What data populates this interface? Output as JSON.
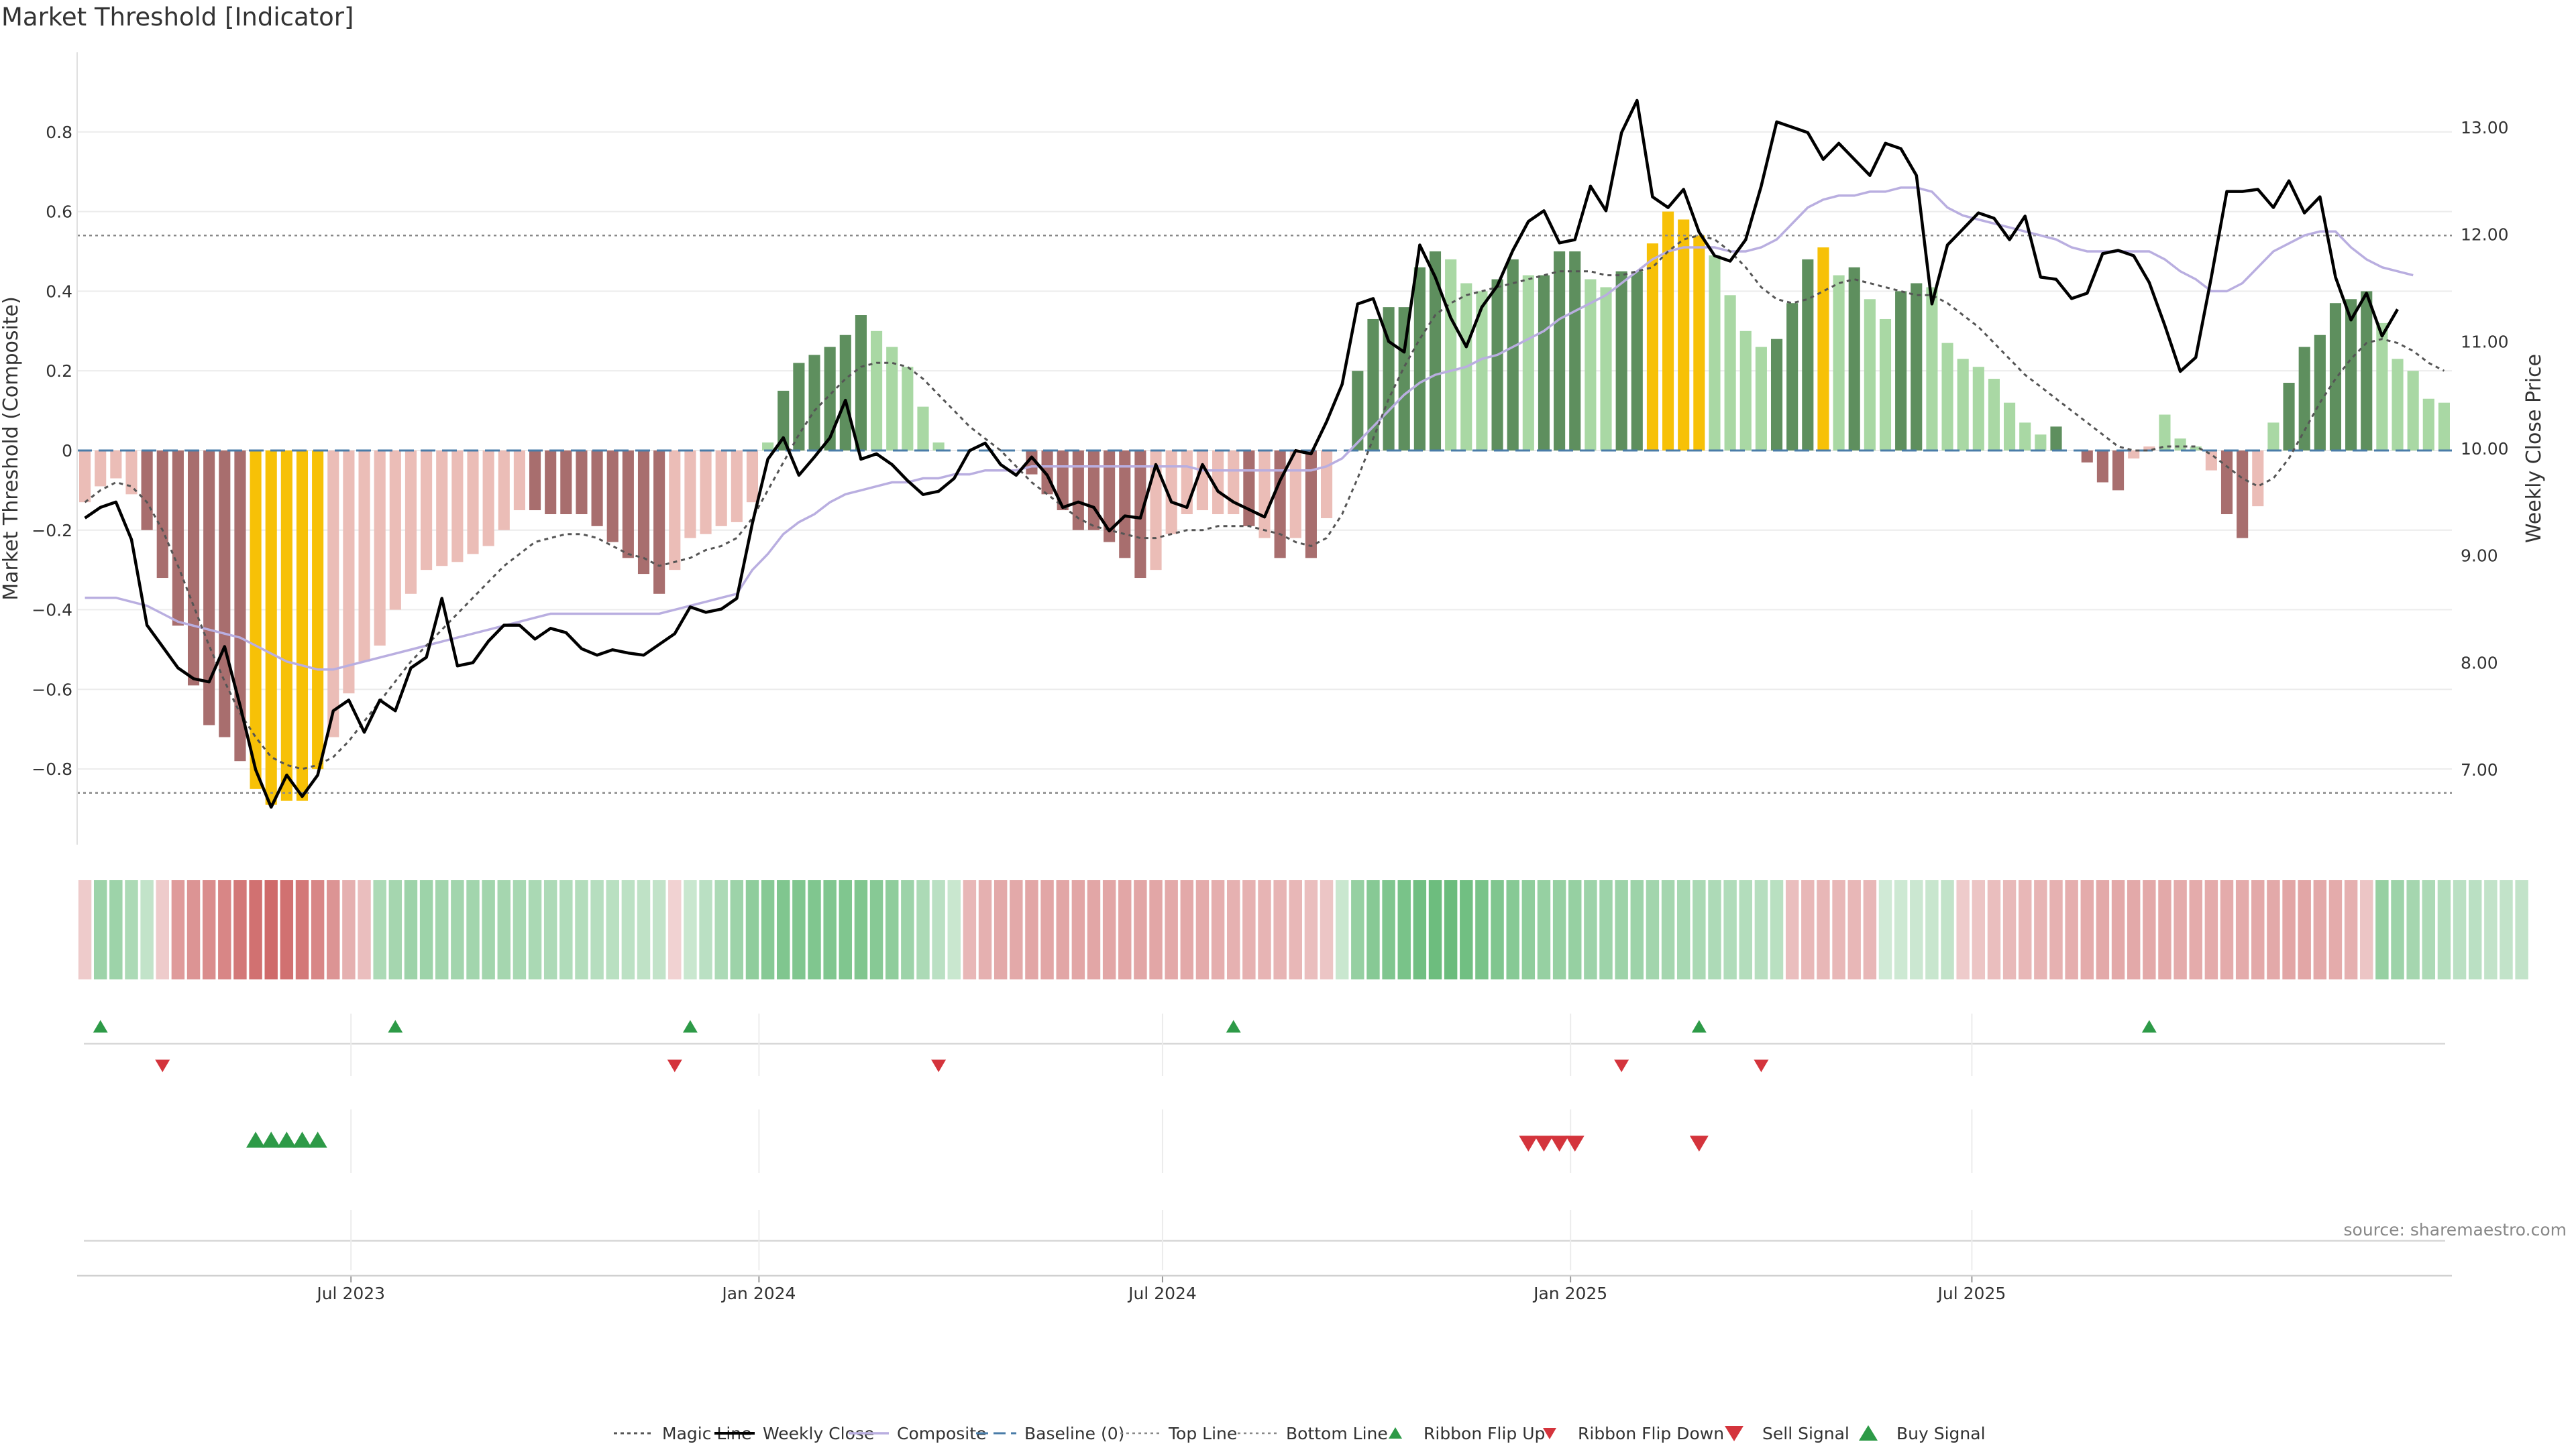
{
  "title": "Market Threshold [Indicator]",
  "source": "source: sharemaestro.com",
  "colors": {
    "magic": "#555555",
    "weekly_close": "#000000",
    "composite": "#b9aee0",
    "baseline": "#4a7ca8",
    "threshold_line": "#888888",
    "bar_strong_green": "#5e8f5e",
    "bar_light_green": "#a9d8a4",
    "bar_strong_red": "#a86e6e",
    "bar_light_red": "#ebbdb7",
    "bar_yellow": "#f7c107",
    "ribbon_green": "#4daf62",
    "ribbon_red": "#c85555",
    "signal_green": "#2d9a47",
    "signal_red": "#d4343c"
  },
  "chart_data": {
    "type": "bar",
    "x_start": "2023-03-03",
    "x_interval_days": 7,
    "x_ticks": [
      "Jul 2023",
      "Jan 2024",
      "Jul 2024",
      "Jan 2025",
      "Jul 2025"
    ],
    "x_tick_dates": [
      "2023-07-01",
      "2024-01-01",
      "2024-07-01",
      "2025-01-01",
      "2025-07-01"
    ],
    "ylabel": "Market Threshold (Composite)",
    "ylabel_right": "Weekly Close Price",
    "ylim": [
      -0.99,
      1.0
    ],
    "ylim_right": [
      6.3,
      13.7
    ],
    "yticks": [
      -0.8,
      -0.6,
      -0.4,
      -0.2,
      0,
      0.2,
      0.4,
      0.6,
      0.8
    ],
    "ytick_labels": [
      "−0.8",
      "−0.6",
      "−0.4",
      "−0.2",
      "0",
      "0.2",
      "0.4",
      "0.6",
      "0.8"
    ],
    "yticks_right": [
      7,
      8,
      9,
      10,
      11,
      12,
      13
    ],
    "ytick_labels_right": [
      "7.00",
      "8.00",
      "9.00",
      "10.00",
      "11.00",
      "12.00",
      "13.00"
    ],
    "top_line": 0.54,
    "bottom_line": -0.86,
    "grid": true,
    "legend_position": "bottom-center",
    "composite_bars": [
      -0.13,
      -0.09,
      -0.07,
      -0.11,
      -0.2,
      -0.32,
      -0.44,
      -0.59,
      -0.69,
      -0.72,
      -0.78,
      -0.85,
      -0.89,
      -0.88,
      -0.88,
      -0.8,
      -0.72,
      -0.61,
      -0.53,
      -0.49,
      -0.4,
      -0.36,
      -0.3,
      -0.29,
      -0.28,
      -0.26,
      -0.24,
      -0.2,
      -0.15,
      -0.15,
      -0.16,
      -0.16,
      -0.16,
      -0.19,
      -0.23,
      -0.27,
      -0.31,
      -0.36,
      -0.3,
      -0.22,
      -0.21,
      -0.19,
      -0.18,
      -0.13,
      0.02,
      0.15,
      0.22,
      0.24,
      0.26,
      0.29,
      0.34,
      0.3,
      0.26,
      0.21,
      0.11,
      0.02,
      0,
      0,
      0,
      0,
      0,
      -0.06,
      -0.11,
      -0.15,
      -0.2,
      -0.2,
      -0.23,
      -0.27,
      -0.32,
      -0.3,
      -0.21,
      -0.16,
      -0.15,
      -0.16,
      -0.16,
      -0.19,
      -0.22,
      -0.27,
      -0.22,
      -0.27,
      -0.17,
      0,
      0.2,
      0.33,
      0.36,
      0.36,
      0.46,
      0.5,
      0.48,
      0.42,
      0.4,
      0.43,
      0.48,
      0.44,
      0.44,
      0.5,
      0.5,
      0.43,
      0.41,
      0.45,
      0.45,
      0.52,
      0.6,
      0.58,
      0.54,
      0.49,
      0.39,
      0.3,
      0.26,
      0.28,
      0.37,
      0.48,
      0.51,
      0.44,
      0.46,
      0.38,
      0.33,
      0.4,
      0.42,
      0.41,
      0.27,
      0.23,
      0.21,
      0.18,
      0.12,
      0.07,
      0.04,
      0.06,
      0,
      -0.03,
      -0.08,
      -0.1,
      -0.02,
      0.01,
      0.09,
      0.03,
      0.01,
      -0.05,
      -0.16,
      -0.22,
      -0.14,
      0.07,
      0.17,
      0.26,
      0.29,
      0.37,
      0.38,
      0.4,
      0.32,
      0.23,
      0.2,
      0.13,
      0.12
    ],
    "bar_styles": [
      "lr",
      "lr",
      "lr",
      "lr",
      "sr",
      "sr",
      "sr",
      "sr",
      "sr",
      "sr",
      "sr",
      "y",
      "y",
      "y",
      "y",
      "y",
      "lr",
      "lr",
      "lr",
      "lr",
      "lr",
      "lr",
      "lr",
      "lr",
      "lr",
      "lr",
      "lr",
      "lr",
      "lr",
      "sr",
      "sr",
      "sr",
      "sr",
      "sr",
      "sr",
      "sr",
      "sr",
      "sr",
      "lr",
      "lr",
      "lr",
      "lr",
      "lr",
      "lr",
      "lg",
      "sg",
      "sg",
      "sg",
      "sg",
      "sg",
      "sg",
      "lg",
      "lg",
      "lg",
      "lg",
      "lg",
      "lg",
      "lg",
      "lg",
      "lg",
      "lg",
      "sr",
      "sr",
      "sr",
      "sr",
      "sr",
      "sr",
      "sr",
      "sr",
      "lr",
      "lr",
      "lr",
      "lr",
      "lr",
      "lr",
      "sr",
      "lr",
      "sr",
      "lr",
      "sr",
      "lr",
      "lg",
      "sg",
      "sg",
      "sg",
      "sg",
      "sg",
      "sg",
      "lg",
      "lg",
      "lg",
      "sg",
      "sg",
      "lg",
      "sg",
      "sg",
      "sg",
      "lg",
      "lg",
      "sg",
      "sg",
      "y",
      "y",
      "y",
      "y",
      "lg",
      "lg",
      "lg",
      "lg",
      "sg",
      "sg",
      "sg",
      "y",
      "lg",
      "sg",
      "lg",
      "lg",
      "sg",
      "sg",
      "lg",
      "lg",
      "lg",
      "lg",
      "lg",
      "lg",
      "lg",
      "lg",
      "sg",
      "lg",
      "sr",
      "sr",
      "sr",
      "lr",
      "lr",
      "lg",
      "lg",
      "lg",
      "lr",
      "sr",
      "sr",
      "lr",
      "lg",
      "sg",
      "sg",
      "sg",
      "sg",
      "sg",
      "sg",
      "lg",
      "lg",
      "lg",
      "lg",
      "lg"
    ],
    "weekly_close": [
      9.35,
      9.45,
      9.5,
      9.15,
      8.35,
      8.15,
      7.95,
      7.85,
      7.82,
      8.15,
      7.6,
      7.0,
      6.65,
      6.95,
      6.75,
      6.95,
      7.55,
      7.65,
      7.35,
      7.65,
      7.55,
      7.95,
      8.05,
      8.6,
      7.97,
      8.0,
      8.2,
      8.35,
      8.35,
      8.22,
      8.32,
      8.28,
      8.13,
      8.07,
      8.12,
      8.09,
      8.07,
      8.17,
      8.27,
      8.52,
      8.47,
      8.5,
      8.6,
      9.3,
      9.9,
      10.1,
      9.75,
      9.92,
      10.1,
      10.45,
      9.9,
      9.95,
      9.85,
      9.7,
      9.57,
      9.6,
      9.72,
      9.98,
      10.05,
      9.85,
      9.75,
      9.92,
      9.75,
      9.45,
      9.5,
      9.45,
      9.23,
      9.37,
      9.35,
      9.85,
      9.5,
      9.45,
      9.85,
      9.6,
      9.5,
      9.43,
      9.36,
      9.7,
      9.98,
      9.95,
      10.25,
      10.6,
      11.35,
      11.4,
      11.0,
      10.9,
      11.9,
      11.6,
      11.22,
      10.95,
      11.32,
      11.52,
      11.85,
      12.12,
      12.22,
      11.92,
      11.95,
      12.45,
      12.22,
      12.95,
      13.25,
      12.35,
      12.25,
      12.42,
      12.02,
      11.8,
      11.75,
      11.95,
      12.45,
      13.05,
      13.0,
      12.95,
      12.7,
      12.85,
      12.7,
      12.55,
      12.85,
      12.8,
      12.55,
      11.35,
      11.9,
      12.05,
      12.2,
      12.15,
      11.95,
      12.17,
      11.6,
      11.58,
      11.4,
      11.45,
      11.82,
      11.85,
      11.8,
      11.55,
      11.15,
      10.72,
      10.85,
      11.6,
      12.4,
      12.4,
      12.42,
      12.25,
      12.5,
      12.2,
      12.35,
      11.6,
      11.2,
      11.45,
      11.05,
      11.3
    ],
    "magic_line": [
      -0.13,
      -0.1,
      -0.08,
      -0.09,
      -0.13,
      -0.2,
      -0.29,
      -0.39,
      -0.49,
      -0.58,
      -0.66,
      -0.72,
      -0.77,
      -0.79,
      -0.8,
      -0.79,
      -0.77,
      -0.73,
      -0.68,
      -0.63,
      -0.58,
      -0.53,
      -0.49,
      -0.45,
      -0.41,
      -0.37,
      -0.33,
      -0.29,
      -0.26,
      -0.23,
      -0.22,
      -0.21,
      -0.21,
      -0.22,
      -0.24,
      -0.26,
      -0.27,
      -0.29,
      -0.28,
      -0.27,
      -0.25,
      -0.24,
      -0.22,
      -0.17,
      -0.1,
      -0.03,
      0.04,
      0.1,
      0.14,
      0.18,
      0.21,
      0.22,
      0.22,
      0.21,
      0.18,
      0.14,
      0.1,
      0.06,
      0.03,
      0.0,
      -0.04,
      -0.08,
      -0.11,
      -0.14,
      -0.17,
      -0.19,
      -0.2,
      -0.21,
      -0.22,
      -0.22,
      -0.21,
      -0.2,
      -0.2,
      -0.19,
      -0.19,
      -0.19,
      -0.2,
      -0.21,
      -0.23,
      -0.24,
      -0.22,
      -0.16,
      -0.07,
      0.03,
      0.13,
      0.21,
      0.28,
      0.34,
      0.37,
      0.39,
      0.4,
      0.41,
      0.42,
      0.43,
      0.44,
      0.45,
      0.45,
      0.45,
      0.44,
      0.44,
      0.45,
      0.46,
      0.5,
      0.53,
      0.54,
      0.53,
      0.5,
      0.46,
      0.41,
      0.38,
      0.37,
      0.38,
      0.4,
      0.42,
      0.43,
      0.42,
      0.41,
      0.4,
      0.39,
      0.39,
      0.37,
      0.34,
      0.31,
      0.27,
      0.23,
      0.19,
      0.16,
      0.13,
      0.1,
      0.07,
      0.04,
      0.01,
      0.0,
      0.0,
      0.01,
      0.01,
      0.01,
      -0.01,
      -0.04,
      -0.07,
      -0.09,
      -0.07,
      -0.02,
      0.05,
      0.12,
      0.18,
      0.23,
      0.27,
      0.28,
      0.27,
      0.25,
      0.22,
      0.2
    ],
    "composite_line": [
      -0.37,
      -0.37,
      -0.37,
      -0.38,
      -0.39,
      -0.41,
      -0.43,
      -0.44,
      -0.45,
      -0.46,
      -0.47,
      -0.49,
      -0.51,
      -0.53,
      -0.54,
      -0.55,
      -0.55,
      -0.54,
      -0.53,
      -0.52,
      -0.51,
      -0.5,
      -0.49,
      -0.48,
      -0.47,
      -0.46,
      -0.45,
      -0.44,
      -0.43,
      -0.42,
      -0.41,
      -0.41,
      -0.41,
      -0.41,
      -0.41,
      -0.41,
      -0.41,
      -0.41,
      -0.4,
      -0.39,
      -0.38,
      -0.37,
      -0.36,
      -0.3,
      -0.26,
      -0.21,
      -0.18,
      -0.16,
      -0.13,
      -0.11,
      -0.1,
      -0.09,
      -0.08,
      -0.08,
      -0.07,
      -0.07,
      -0.06,
      -0.06,
      -0.05,
      -0.05,
      -0.05,
      -0.04,
      -0.04,
      -0.04,
      -0.04,
      -0.04,
      -0.04,
      -0.04,
      -0.04,
      -0.04,
      -0.04,
      -0.04,
      -0.05,
      -0.05,
      -0.05,
      -0.05,
      -0.05,
      -0.05,
      -0.05,
      -0.05,
      -0.04,
      -0.02,
      0.02,
      0.06,
      0.1,
      0.14,
      0.17,
      0.19,
      0.2,
      0.21,
      0.23,
      0.24,
      0.26,
      0.28,
      0.3,
      0.33,
      0.35,
      0.37,
      0.39,
      0.42,
      0.45,
      0.48,
      0.5,
      0.51,
      0.51,
      0.51,
      0.5,
      0.5,
      0.51,
      0.53,
      0.57,
      0.61,
      0.63,
      0.64,
      0.64,
      0.65,
      0.65,
      0.66,
      0.66,
      0.65,
      0.61,
      0.59,
      0.58,
      0.57,
      0.56,
      0.55,
      0.54,
      0.53,
      0.51,
      0.5,
      0.5,
      0.5,
      0.5,
      0.5,
      0.48,
      0.45,
      0.43,
      0.4,
      0.4,
      0.42,
      0.46,
      0.5,
      0.52,
      0.54,
      0.55,
      0.55,
      0.51,
      0.48,
      0.46,
      0.45,
      0.44
    ],
    "ribbon_levels": [
      -0.15,
      0.45,
      0.45,
      0.35,
      0.2,
      -0.15,
      -0.5,
      -0.55,
      -0.6,
      -0.65,
      -0.75,
      -0.8,
      -0.85,
      -0.8,
      -0.75,
      -0.65,
      -0.55,
      -0.35,
      -0.25,
      0.35,
      0.4,
      0.45,
      0.45,
      0.42,
      0.42,
      0.42,
      0.42,
      0.4,
      0.38,
      0.36,
      0.34,
      0.32,
      0.3,
      0.28,
      0.26,
      0.24,
      0.22,
      0.2,
      -0.1,
      0.15,
      0.25,
      0.35,
      0.45,
      0.55,
      0.6,
      0.65,
      0.65,
      0.65,
      0.65,
      0.65,
      0.65,
      0.6,
      0.55,
      0.45,
      0.35,
      0.25,
      0.15,
      -0.3,
      -0.35,
      -0.4,
      -0.4,
      -0.42,
      -0.42,
      -0.42,
      -0.42,
      -0.42,
      -0.42,
      -0.42,
      -0.42,
      -0.42,
      -0.4,
      -0.4,
      -0.38,
      -0.36,
      -0.34,
      -0.34,
      -0.32,
      -0.32,
      -0.3,
      -0.25,
      -0.2,
      0.15,
      0.5,
      0.6,
      0.65,
      0.7,
      0.75,
      0.78,
      0.8,
      0.75,
      0.7,
      0.65,
      0.6,
      0.55,
      0.5,
      0.5,
      0.5,
      0.45,
      0.45,
      0.45,
      0.45,
      0.42,
      0.4,
      0.38,
      0.36,
      0.34,
      0.32,
      0.3,
      0.28,
      0.26,
      -0.25,
      -0.3,
      -0.3,
      -0.3,
      -0.3,
      -0.3,
      0.1,
      0.12,
      0.14,
      0.16,
      0.2,
      -0.15,
      -0.2,
      -0.25,
      -0.28,
      -0.3,
      -0.32,
      -0.34,
      -0.36,
      -0.38,
      -0.4,
      -0.4,
      -0.4,
      -0.4,
      -0.4,
      -0.38,
      -0.38,
      -0.38,
      -0.38,
      -0.38,
      -0.4,
      -0.4,
      -0.42,
      -0.42,
      -0.4,
      -0.38,
      -0.35,
      -0.2,
      0.5,
      0.45,
      0.4,
      0.35,
      0.3,
      0.25,
      0.25,
      0.2,
      0.2,
      0.2
    ],
    "ribbon_flip_up": [
      1,
      20,
      39,
      74,
      104,
      133
    ],
    "ribbon_flip_down": [
      5,
      38,
      55,
      99,
      108
    ],
    "buy_signal": [
      11,
      12,
      13,
      14,
      15
    ],
    "sell_signal": [
      93,
      94,
      95,
      96,
      104
    ],
    "legend": [
      {
        "label": "Magic Line",
        "key": "magic"
      },
      {
        "label": "Weekly Close",
        "key": "weekly_close"
      },
      {
        "label": "Composite",
        "key": "composite"
      },
      {
        "label": "Baseline (0)",
        "key": "baseline"
      },
      {
        "label": "Top Line",
        "key": "top_line"
      },
      {
        "label": "Bottom Line",
        "key": "bottom_line"
      },
      {
        "label": "Ribbon Flip Up",
        "key": "ribbon_flip_up"
      },
      {
        "label": "Ribbon Flip Down",
        "key": "ribbon_flip_down"
      },
      {
        "label": "Sell Signal",
        "key": "sell_signal"
      },
      {
        "label": "Buy Signal",
        "key": "buy_signal"
      }
    ]
  }
}
